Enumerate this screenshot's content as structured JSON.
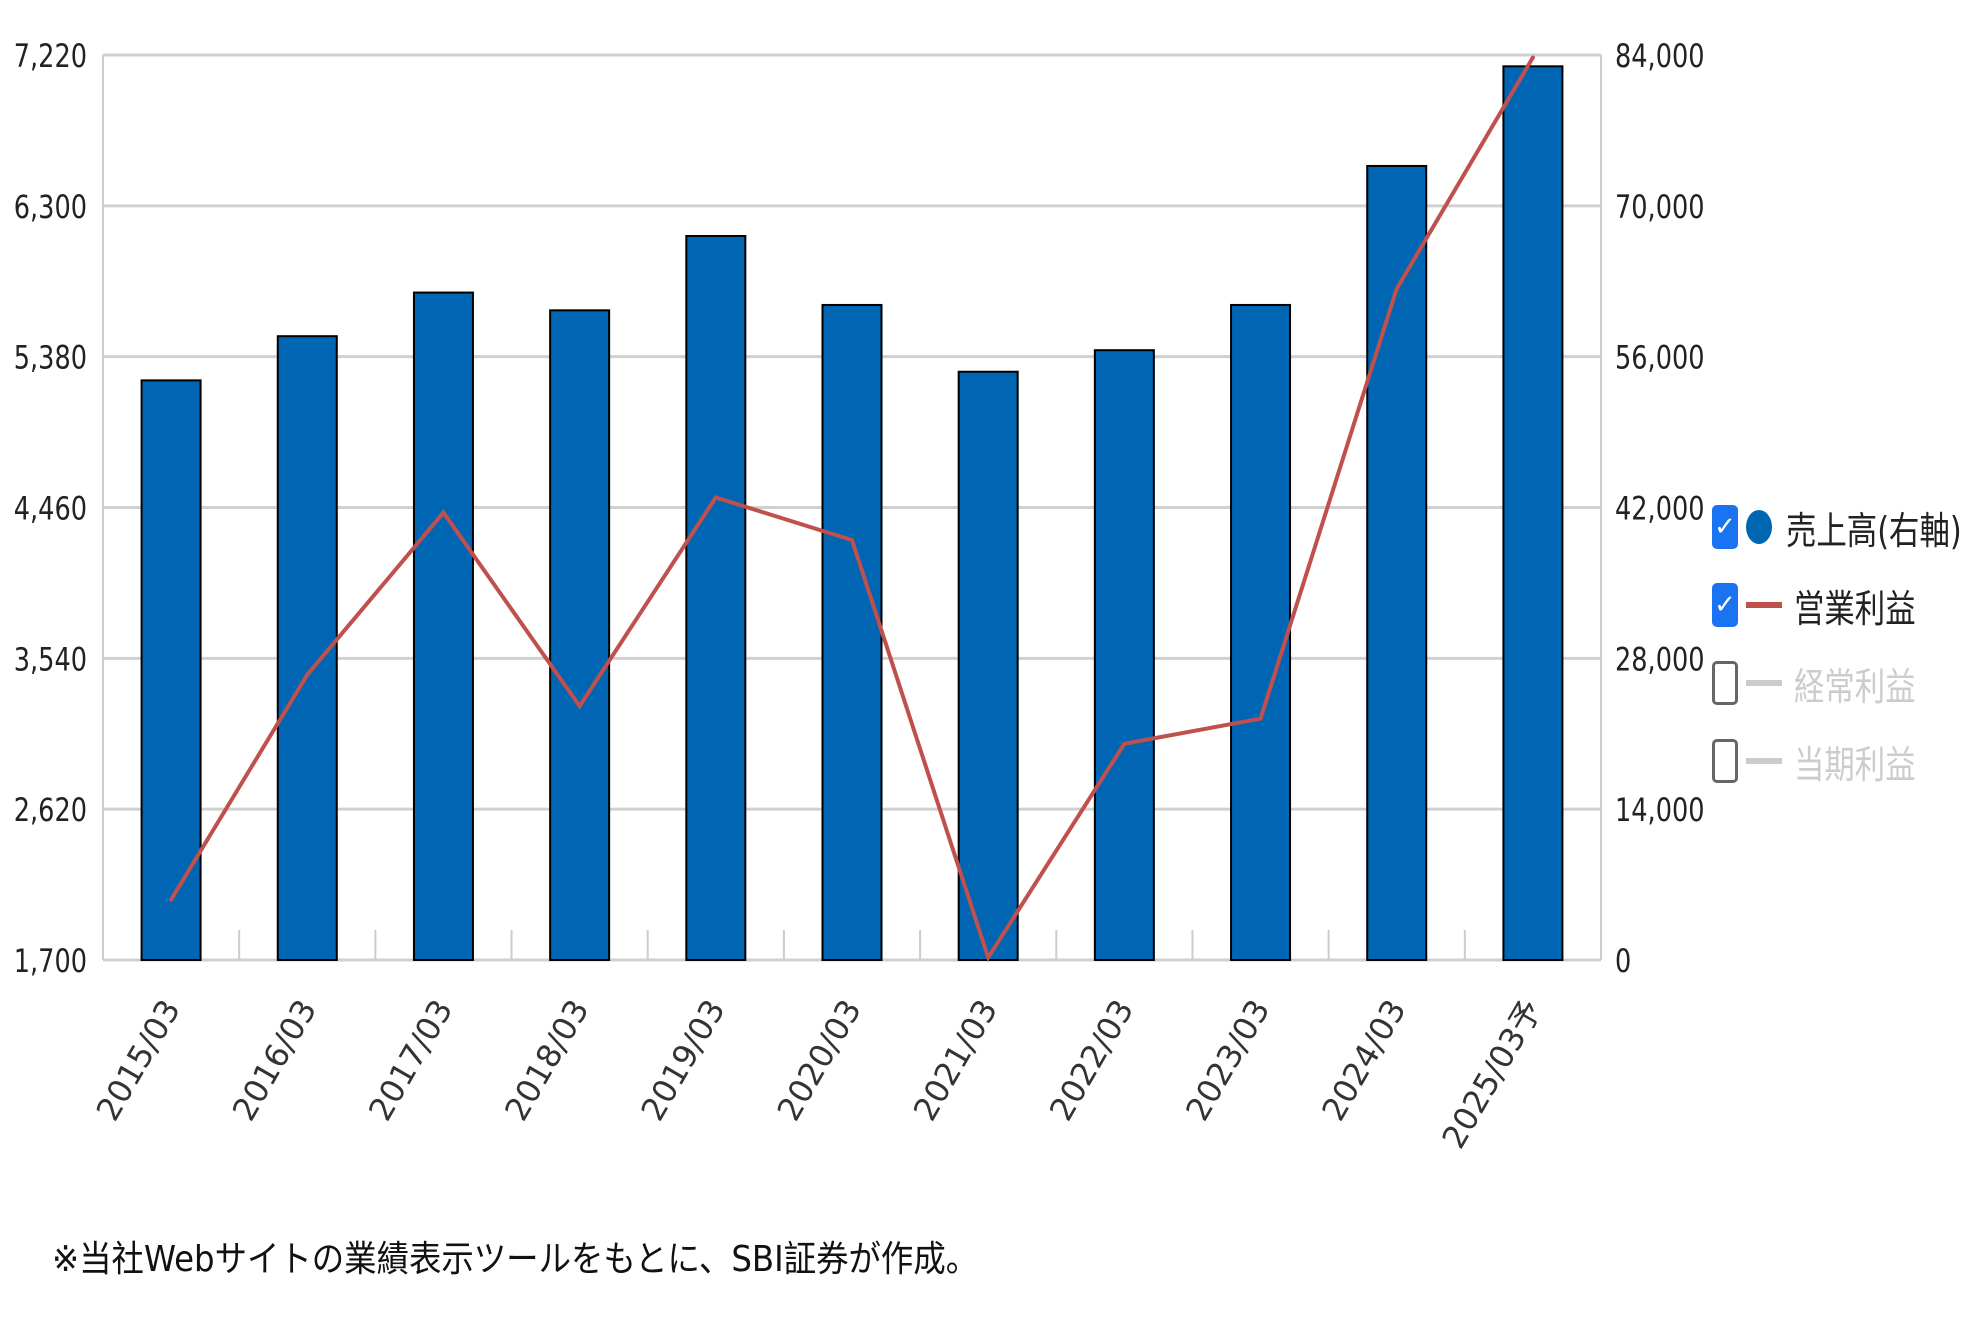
{
  "chart_data": {
    "type": "bar+line",
    "categories": [
      "2015/03",
      "2016/03",
      "2017/03",
      "2018/03",
      "2019/03",
      "2020/03",
      "2021/03",
      "2022/03",
      "2023/03",
      "2024/03",
      "2025/03予"
    ],
    "series": [
      {
        "name": "売上高(右軸)",
        "type": "bar",
        "axis": "right",
        "color": "#0066b3",
        "values": [
          53800,
          57900,
          61950,
          60300,
          67200,
          60800,
          54600,
          56600,
          60800,
          73700,
          82950
        ]
      },
      {
        "name": "営業利益",
        "type": "line",
        "axis": "left",
        "color": "#c0504d",
        "values": [
          2068,
          3440,
          4429,
          3249,
          4521,
          4261,
          1715,
          3019,
          3172,
          5794,
          7205
        ]
      }
    ],
    "left_axis": {
      "ylim": [
        1700,
        7220
      ],
      "ticks": [
        "1,700",
        "2,620",
        "3,540",
        "4,460",
        "5,380",
        "6,300",
        "7,220"
      ]
    },
    "right_axis": {
      "ylim": [
        0,
        84000
      ],
      "ticks": [
        "0",
        "14,000",
        "28,000",
        "42,000",
        "56,000",
        "70,000",
        "84,000"
      ]
    },
    "grid": true,
    "legend_position": "right"
  },
  "legend": [
    {
      "label": "売上高(右軸)",
      "checked": true,
      "marker": "dot",
      "color": "#0066b3"
    },
    {
      "label": "営業利益",
      "checked": true,
      "marker": "line",
      "color": "#c0504d"
    },
    {
      "label": "経常利益",
      "checked": false,
      "marker": "line",
      "color": "#cccccc"
    },
    {
      "label": "当期利益",
      "checked": false,
      "marker": "line",
      "color": "#cccccc"
    }
  ],
  "footer": "※当社Webサイトの業績表示ツールをもとに、SBI証券が作成。"
}
